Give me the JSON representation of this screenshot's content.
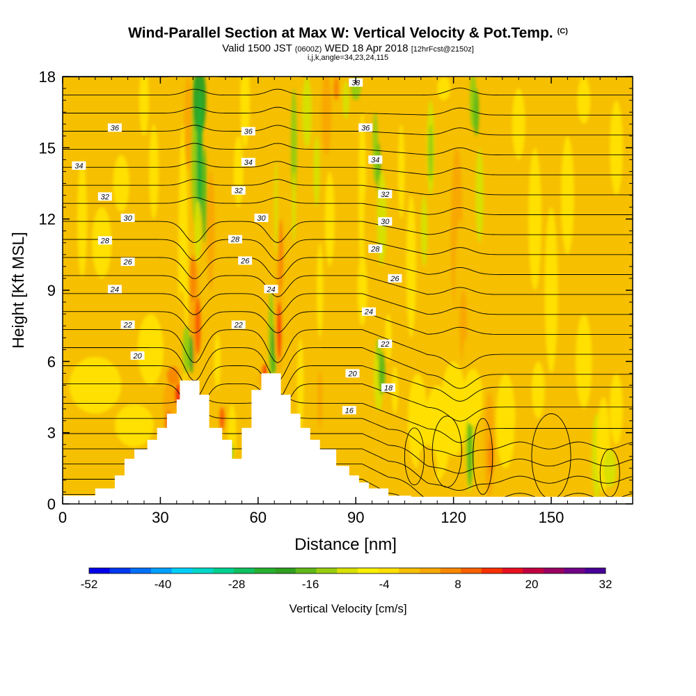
{
  "title": {
    "main": "Wind-Parallel Section at Max W: Vertical Velocity & Pot.Temp.",
    "copyright": "(C)",
    "valid_prefix": "Valid 1500 JST",
    "valid_utc": "(0600Z)",
    "valid_date": "WED 18 Apr 2018",
    "forecast": "[12hrFcst@2150z]",
    "indices": "i,j,k,angle=34,23,24,115"
  },
  "colors": {
    "terrain": "#ffffff",
    "contour": "#000000",
    "background_field": "#f6bf00"
  },
  "chart_data": {
    "type": "heatmap",
    "xlabel": "Distance [nm]",
    "ylabel": "Height [Kft MSL]",
    "xlim": [
      0,
      175
    ],
    "ylim": [
      0,
      18
    ],
    "x_ticks": [
      0,
      30,
      60,
      90,
      120,
      150
    ],
    "x_tick_labels": [
      "0",
      "30",
      "60",
      "90",
      "120",
      "150"
    ],
    "y_ticks": [
      0,
      3,
      6,
      9,
      12,
      15,
      18
    ],
    "y_tick_labels": [
      "0",
      "3",
      "6",
      "9",
      "12",
      "15",
      "18"
    ],
    "grid": false,
    "terrain_profile": [
      [
        0,
        0.35
      ],
      [
        10,
        0.35
      ],
      [
        10,
        0.65
      ],
      [
        16,
        0.65
      ],
      [
        16,
        1.2
      ],
      [
        19,
        1.2
      ],
      [
        19,
        1.9
      ],
      [
        22,
        1.9
      ],
      [
        22,
        2.3
      ],
      [
        26,
        2.3
      ],
      [
        26,
        2.7
      ],
      [
        29,
        2.7
      ],
      [
        29,
        3.2
      ],
      [
        32,
        3.2
      ],
      [
        32,
        3.8
      ],
      [
        35,
        3.8
      ],
      [
        35,
        4.4
      ],
      [
        36,
        4.4
      ],
      [
        36,
        5.2
      ],
      [
        42,
        5.2
      ],
      [
        42,
        4.6
      ],
      [
        45,
        4.6
      ],
      [
        45,
        3.2
      ],
      [
        49,
        3.2
      ],
      [
        49,
        2.7
      ],
      [
        52,
        2.7
      ],
      [
        52,
        1.9
      ],
      [
        55,
        1.9
      ],
      [
        55,
        3.2
      ],
      [
        58,
        3.2
      ],
      [
        58,
        4.8
      ],
      [
        61,
        4.8
      ],
      [
        61,
        5.5
      ],
      [
        67,
        5.5
      ],
      [
        67,
        4.6
      ],
      [
        70,
        4.6
      ],
      [
        70,
        3.8
      ],
      [
        73,
        3.8
      ],
      [
        73,
        3.2
      ],
      [
        76,
        3.2
      ],
      [
        76,
        2.7
      ],
      [
        79,
        2.7
      ],
      [
        79,
        2.3
      ],
      [
        84,
        2.3
      ],
      [
        84,
        1.6
      ],
      [
        88,
        1.6
      ],
      [
        88,
        1.2
      ],
      [
        91,
        1.2
      ],
      [
        91,
        0.9
      ],
      [
        94,
        0.9
      ],
      [
        94,
        0.65
      ],
      [
        100,
        0.65
      ],
      [
        100,
        0.35
      ],
      [
        107,
        0.35
      ],
      [
        107,
        0.3
      ],
      [
        175,
        0.3
      ]
    ],
    "colorbar": {
      "label": "Vertical Velocity [cm/s]",
      "min": -52,
      "max": 32,
      "step": 4,
      "tick_labels": [
        "-52",
        "-40",
        "-28",
        "-16",
        "-4",
        "8",
        "20",
        "32"
      ],
      "colors": [
        "#0000e8",
        "#0038f0",
        "#0070f8",
        "#00a0ff",
        "#00d0f8",
        "#00d8c8",
        "#00d090",
        "#10c060",
        "#28b030",
        "#30a020",
        "#60b818",
        "#98cc10",
        "#d8e000",
        "#f8f000",
        "#ffe000",
        "#f6bf00",
        "#f8a800",
        "#f88800",
        "#f86000",
        "#f83000",
        "#e81020",
        "#c00040",
        "#980060",
        "#700088",
        "#480098"
      ]
    },
    "potential_temperature_contours": {
      "units": "C",
      "levels": [
        14,
        15,
        16,
        17,
        18,
        19,
        20,
        21,
        22,
        23,
        24,
        25,
        26,
        27,
        28,
        29,
        30,
        31,
        32,
        33,
        34,
        35,
        36,
        37,
        38
      ],
      "labels": [
        {
          "text": "36",
          "x": 16,
          "y": 15.85
        },
        {
          "text": "36",
          "x": 57,
          "y": 15.7
        },
        {
          "text": "36",
          "x": 93,
          "y": 15.85
        },
        {
          "text": "38",
          "x": 90,
          "y": 17.75
        },
        {
          "text": "34",
          "x": 5,
          "y": 14.25
        },
        {
          "text": "34",
          "x": 57,
          "y": 14.4
        },
        {
          "text": "34",
          "x": 96,
          "y": 14.5
        },
        {
          "text": "32",
          "x": 13,
          "y": 12.95
        },
        {
          "text": "32",
          "x": 54,
          "y": 13.2
        },
        {
          "text": "32",
          "x": 99,
          "y": 13.05
        },
        {
          "text": "30",
          "x": 20,
          "y": 12.05
        },
        {
          "text": "30",
          "x": 61,
          "y": 12.05
        },
        {
          "text": "30",
          "x": 99,
          "y": 11.9
        },
        {
          "text": "28",
          "x": 13,
          "y": 11.1
        },
        {
          "text": "28",
          "x": 53,
          "y": 11.15
        },
        {
          "text": "28",
          "x": 96,
          "y": 10.75
        },
        {
          "text": "26",
          "x": 20,
          "y": 10.2
        },
        {
          "text": "26",
          "x": 56,
          "y": 10.25
        },
        {
          "text": "26",
          "x": 102,
          "y": 9.5
        },
        {
          "text": "24",
          "x": 16,
          "y": 9.05
        },
        {
          "text": "24",
          "x": 64,
          "y": 9.05
        },
        {
          "text": "24",
          "x": 94,
          "y": 8.1
        },
        {
          "text": "22",
          "x": 20,
          "y": 7.55
        },
        {
          "text": "22",
          "x": 54,
          "y": 7.55
        },
        {
          "text": "22",
          "x": 99,
          "y": 6.75
        },
        {
          "text": "20",
          "x": 23,
          "y": 6.25
        },
        {
          "text": "20",
          "x": 89,
          "y": 5.5
        },
        {
          "text": "18",
          "x": 100,
          "y": 4.9
        },
        {
          "text": "16",
          "x": 88,
          "y": 3.95
        }
      ]
    }
  }
}
